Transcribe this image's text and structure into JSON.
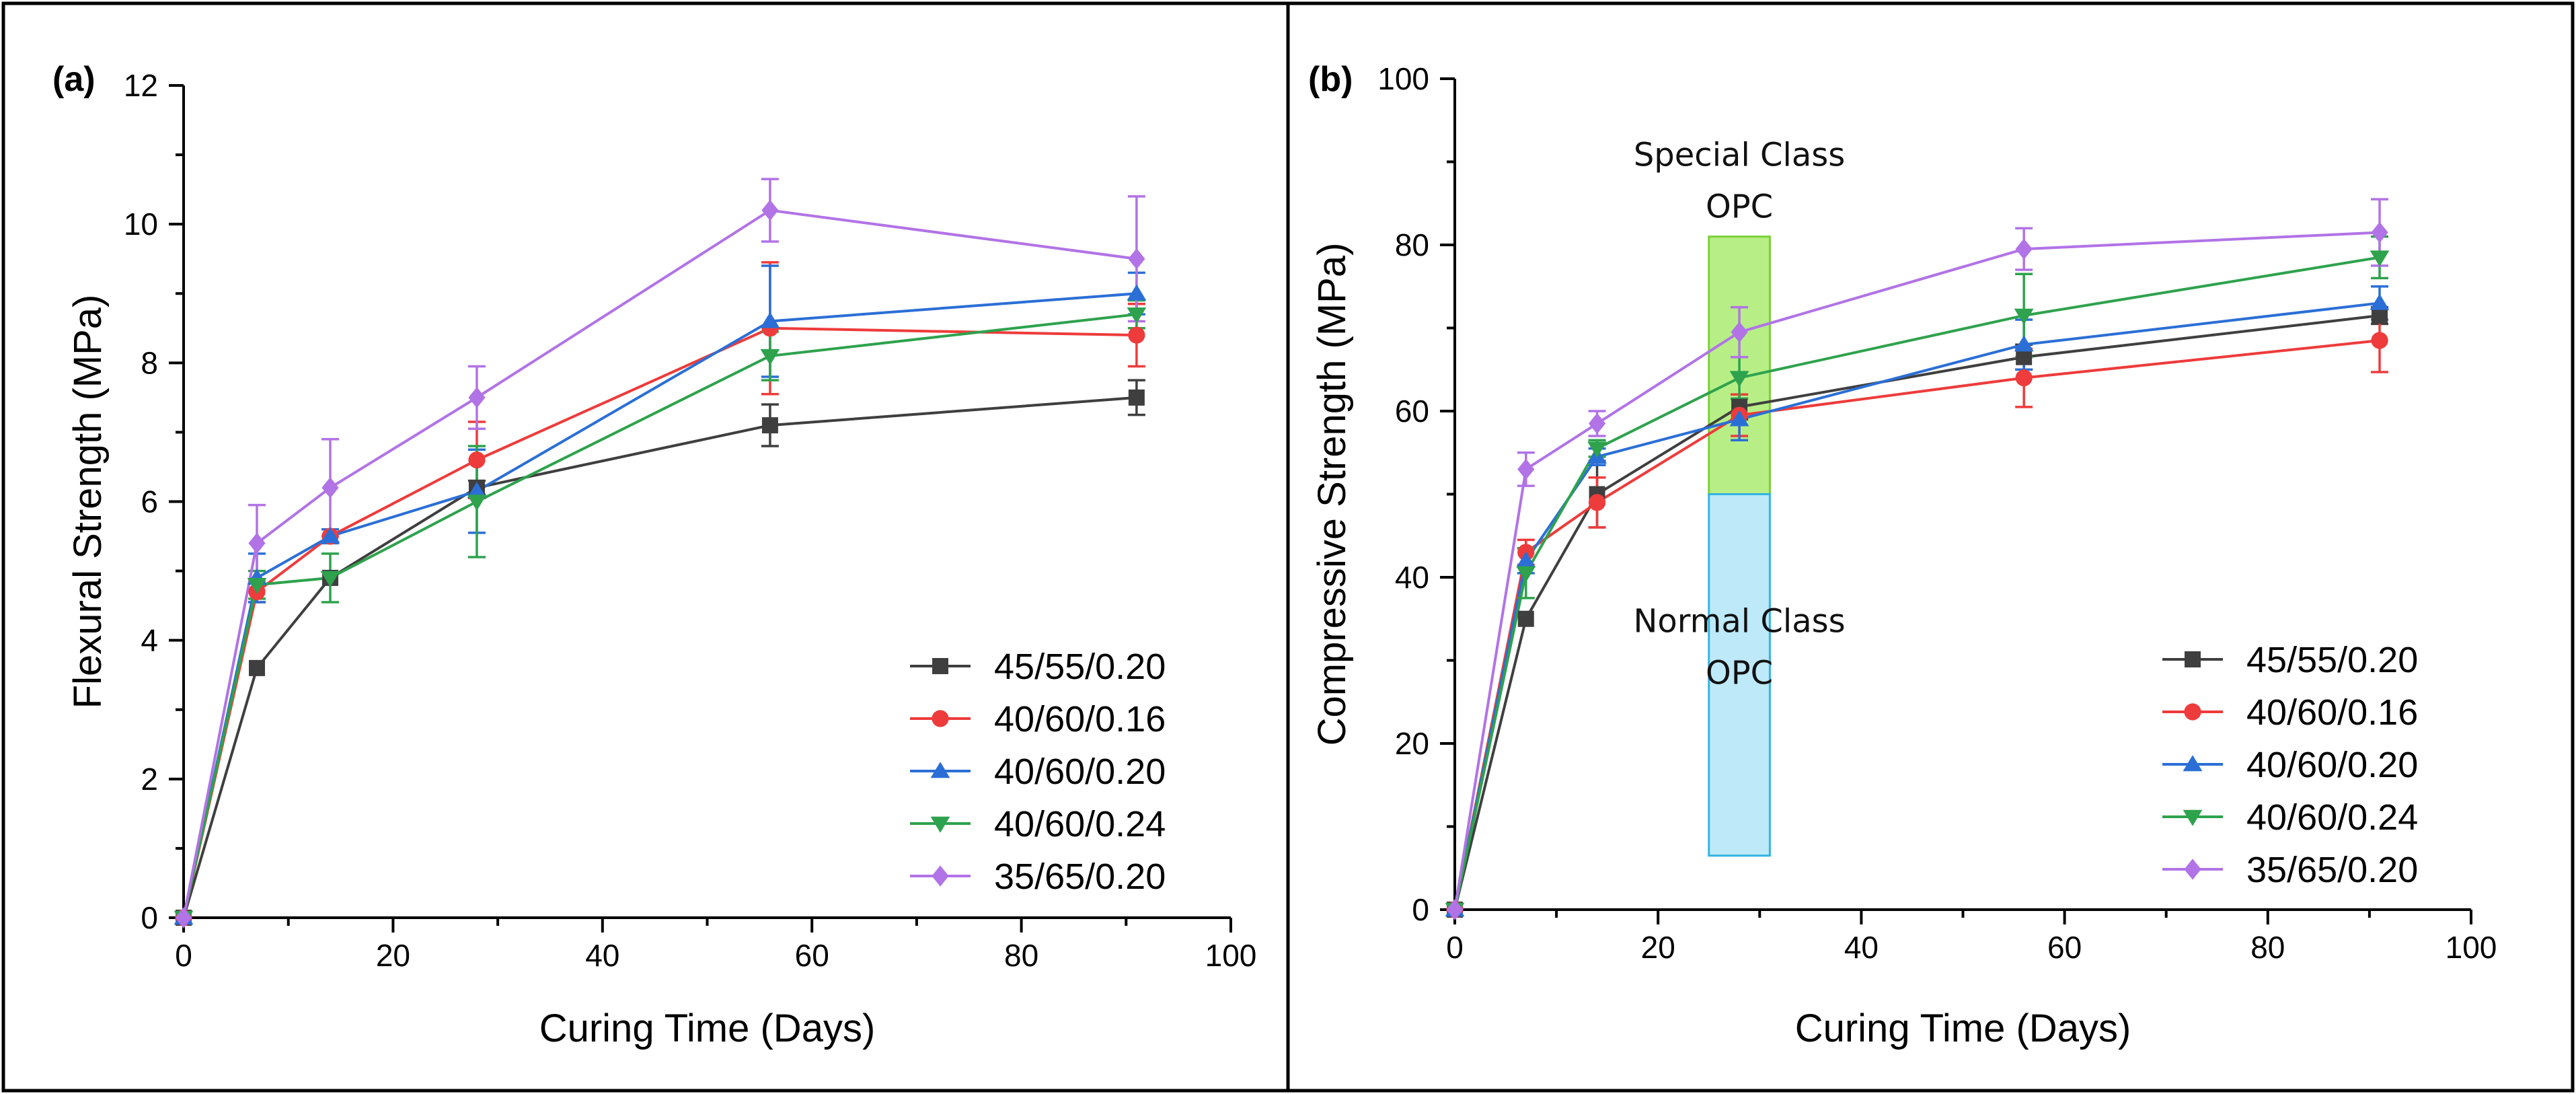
{
  "chart_data": [
    {
      "type": "line",
      "panel_label": "(a)",
      "xlabel": "Curing Time (Days)",
      "ylabel": "Flexural Strength (MPa)",
      "xlim": [
        0,
        100
      ],
      "ylim": [
        0,
        12
      ],
      "xticks": [
        0,
        20,
        40,
        60,
        80,
        100
      ],
      "yticks": [
        0,
        2,
        4,
        6,
        8,
        10,
        12
      ],
      "legend_position": "bottom-right",
      "x": [
        0,
        7,
        14,
        28,
        56,
        91
      ],
      "series": [
        {
          "name": "45/55/0.20",
          "color": "#3f3f3f",
          "marker": "square",
          "values": [
            0,
            3.6,
            4.9,
            6.2,
            7.1,
            7.5
          ],
          "errors": [
            0,
            0,
            0,
            0.1,
            0.3,
            0.25
          ]
        },
        {
          "name": "40/60/0.16",
          "color": "#ee3b3b",
          "marker": "circle",
          "values": [
            0,
            4.7,
            5.5,
            6.6,
            8.5,
            8.4
          ],
          "errors": [
            0,
            0.15,
            0,
            0.55,
            0.95,
            0.45
          ]
        },
        {
          "name": "40/60/0.20",
          "color": "#2b6fd6",
          "marker": "triangle-up",
          "values": [
            0,
            4.9,
            5.5,
            6.15,
            8.6,
            9.0
          ],
          "errors": [
            0,
            0.35,
            0.1,
            0.6,
            0.8,
            0.3
          ]
        },
        {
          "name": "40/60/0.24",
          "color": "#2ea24d",
          "marker": "triangle-down",
          "values": [
            0,
            4.8,
            4.9,
            6.0,
            8.1,
            8.7
          ],
          "errors": [
            0,
            0.2,
            0.35,
            0.8,
            0.35,
            0.2
          ]
        },
        {
          "name": "35/65/0.20",
          "color": "#b173e6",
          "marker": "diamond",
          "values": [
            0,
            5.4,
            6.2,
            7.5,
            10.2,
            9.5
          ],
          "errors": [
            0,
            0.55,
            0.7,
            0.45,
            0.45,
            0.9
          ]
        }
      ]
    },
    {
      "type": "line",
      "panel_label": "(b)",
      "xlabel": "Curing Time (Days)",
      "ylabel": "Compressive Strength (MPa)",
      "xlim": [
        0,
        100
      ],
      "ylim": [
        0,
        100
      ],
      "xticks": [
        0,
        20,
        40,
        60,
        80,
        100
      ],
      "yticks": [
        0,
        20,
        40,
        60,
        80,
        100
      ],
      "legend_position": "bottom-right",
      "x": [
        0,
        7,
        14,
        28,
        56,
        91
      ],
      "series": [
        {
          "name": "45/55/0.20",
          "color": "#3f3f3f",
          "marker": "square",
          "values": [
            0,
            35,
            50,
            60.5,
            66.5,
            71.5
          ],
          "errors": [
            0,
            0,
            4,
            1.5,
            1.5,
            1
          ]
        },
        {
          "name": "40/60/0.16",
          "color": "#ee3b3b",
          "marker": "circle",
          "values": [
            0,
            43,
            49,
            59.5,
            64,
            68.5
          ],
          "errors": [
            0,
            1.5,
            3,
            2.5,
            3.5,
            3.8
          ]
        },
        {
          "name": "40/60/0.20",
          "color": "#2b6fd6",
          "marker": "triangle-up",
          "values": [
            0,
            42,
            54.5,
            59,
            68,
            73
          ],
          "errors": [
            0,
            1.5,
            1,
            2.5,
            3,
            2
          ]
        },
        {
          "name": "40/60/0.24",
          "color": "#2ea24d",
          "marker": "triangle-down",
          "values": [
            0,
            40.5,
            55.5,
            64,
            71.5,
            78.5
          ],
          "errors": [
            0,
            3,
            1,
            2.5,
            5,
            2.5
          ]
        },
        {
          "name": "35/65/0.20",
          "color": "#b173e6",
          "marker": "diamond",
          "values": [
            0,
            53,
            58.5,
            69.5,
            79.5,
            81.5
          ],
          "errors": [
            0,
            2,
            1.5,
            3,
            2.5,
            4
          ]
        }
      ],
      "regions": [
        {
          "label_lines": [
            "Special Class",
            "OPC"
          ],
          "x_range": [
            25,
            31
          ],
          "y_range": [
            50,
            81
          ],
          "fill": "#b7ef86",
          "stroke": "#7bd03a"
        },
        {
          "label_lines": [
            "Normal Class",
            "OPC"
          ],
          "x_range": [
            25,
            31
          ],
          "y_range": [
            6.5,
            50
          ],
          "fill": "#bde9f8",
          "stroke": "#33b4e0"
        }
      ]
    }
  ]
}
